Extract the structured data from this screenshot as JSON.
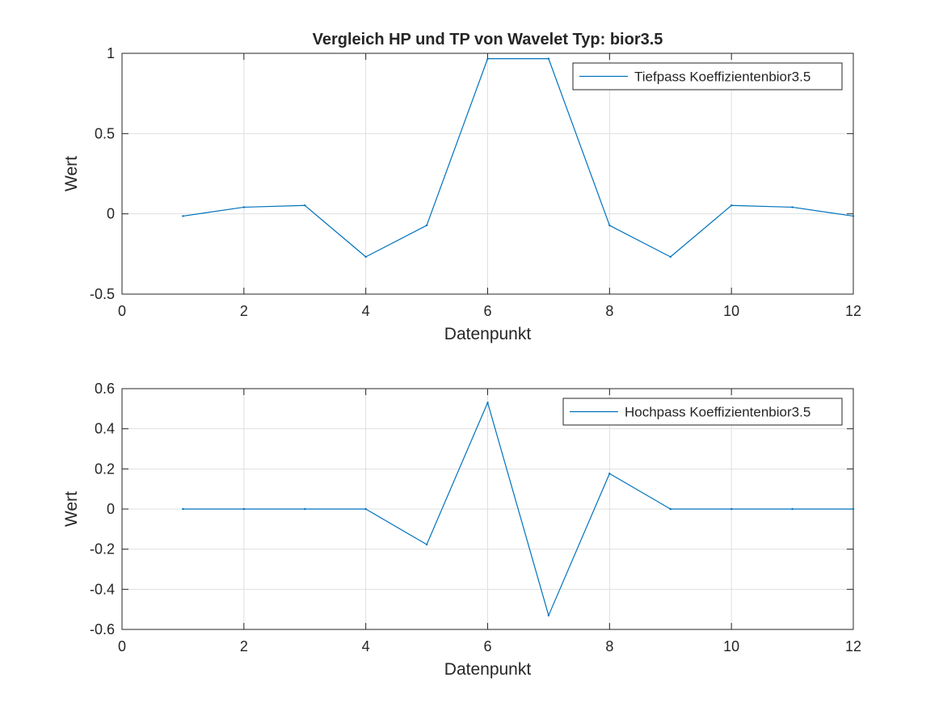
{
  "chart_data": [
    {
      "type": "line",
      "title": "Vergleich HP und TP von Wavelet Typ: bior3.5",
      "xlabel": "Datenpunkt",
      "ylabel": "Wert",
      "xlim": [
        0,
        12
      ],
      "ylim": [
        -0.5,
        1
      ],
      "xticks": [
        0,
        2,
        4,
        6,
        8,
        10,
        12
      ],
      "xticklabels": [
        "0",
        "2",
        "4",
        "6",
        "8",
        "10",
        "12"
      ],
      "yticks": [
        -0.5,
        0,
        0.5,
        1
      ],
      "yticklabels": [
        "-0.5",
        "0",
        "0.5",
        "1"
      ],
      "grid": true,
      "legend_position": "top-right",
      "series": [
        {
          "name": "Tiefpass Koeffizientenbior3.5",
          "color": "#0072BD",
          "x": [
            1,
            2,
            3,
            4,
            5,
            6,
            7,
            8,
            9,
            10,
            11,
            12
          ],
          "values": [
            -0.0138,
            0.0414,
            0.0525,
            -0.2679,
            -0.0718,
            0.9667,
            0.9667,
            -0.0718,
            -0.2679,
            0.0525,
            0.0414,
            -0.0138
          ]
        }
      ]
    },
    {
      "type": "line",
      "title": "",
      "xlabel": "Datenpunkt",
      "ylabel": "Wert",
      "xlim": [
        0,
        12
      ],
      "ylim": [
        -0.6,
        0.6
      ],
      "xticks": [
        0,
        2,
        4,
        6,
        8,
        10,
        12
      ],
      "xticklabels": [
        "0",
        "2",
        "4",
        "6",
        "8",
        "10",
        "12"
      ],
      "yticks": [
        -0.6,
        -0.4,
        -0.2,
        0,
        0.2,
        0.4,
        0.6
      ],
      "yticklabels": [
        "-0.6",
        "-0.4",
        "-0.2",
        "0",
        "0.2",
        "0.4",
        "0.6"
      ],
      "grid": true,
      "legend_position": "top-right",
      "series": [
        {
          "name": "Hochpass Koeffizientenbior3.5",
          "color": "#0072BD",
          "x": [
            1,
            2,
            3,
            4,
            5,
            6,
            7,
            8,
            9,
            10,
            11,
            12
          ],
          "values": [
            0,
            0,
            0,
            0,
            -0.1768,
            0.5303,
            -0.5303,
            0.1768,
            0,
            0,
            0,
            0
          ]
        }
      ]
    }
  ]
}
